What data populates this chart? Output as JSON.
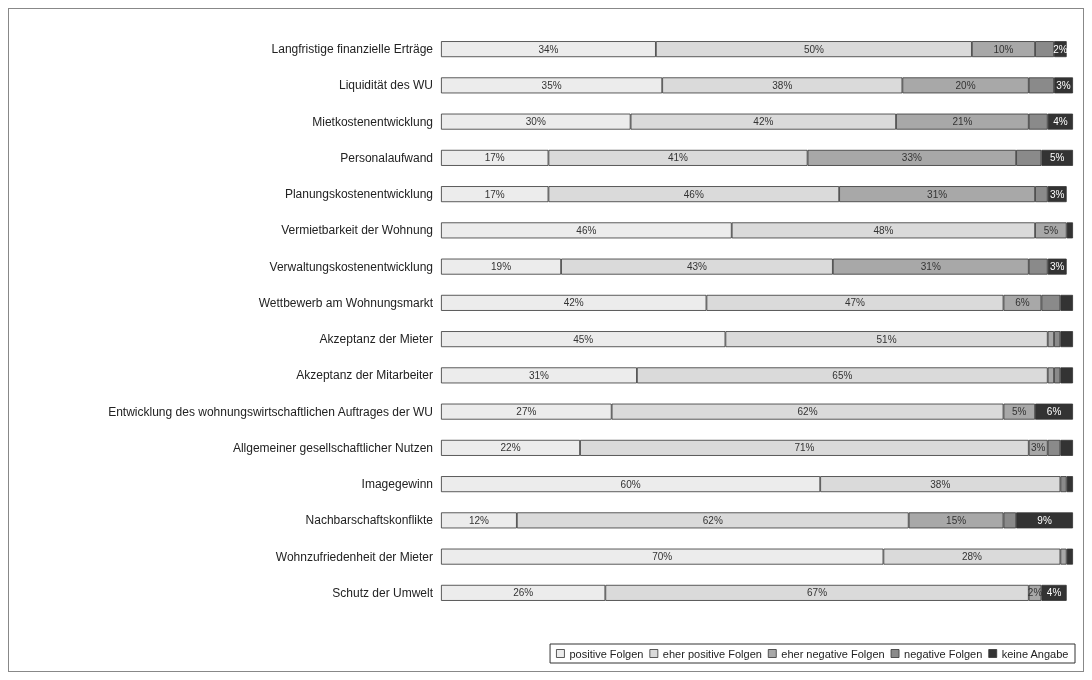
{
  "chart_data": {
    "type": "bar",
    "orientation": "horizontal",
    "stacked": true,
    "legend": "bottom right",
    "categories": [
      "Langfristige finanzielle Erträge",
      "Liquidität des WU",
      "Mietkostenentwicklung",
      "Personalaufwand",
      "Planungskostenentwicklung",
      "Vermietbarkeit der Wohnung",
      "Verwaltungskostenentwicklung",
      "Wettbewerb am Wohnungsmarkt",
      "Akzeptanz der Mieter",
      "Akzeptanz der Mitarbeiter",
      "Entwicklung des wohnungswirtschaftlichen Auftrages der WU",
      "Allgemeiner gesellschaftlicher Nutzen",
      "Imagegewinn",
      "Nachbarschaftskonflikte",
      "Wohnzufriedenheit der Mieter",
      "Schutz der Umwelt"
    ],
    "series": [
      {
        "name": "positive Folgen",
        "color": "#ececec",
        "values": [
          34,
          35,
          30,
          17,
          17,
          46,
          19,
          42,
          45,
          31,
          27,
          22,
          60,
          12,
          70,
          26
        ],
        "value_labels": [
          "34%",
          "35%",
          "30%",
          "17%",
          "17%",
          "46%",
          "19%",
          "42%",
          "45%",
          "31%",
          "27%",
          "22%",
          "60%",
          "12%",
          "70%",
          "26%"
        ]
      },
      {
        "name": "eher positive Folgen",
        "color": "#dadada",
        "values": [
          50,
          38,
          42,
          41,
          46,
          48,
          43,
          47,
          51,
          65,
          62,
          71,
          38,
          62,
          28,
          67
        ],
        "value_labels": [
          "50%",
          "38%",
          "42%",
          "41%",
          "46%",
          "48%",
          "43%",
          "47%",
          "51%",
          "65%",
          "62%",
          "71%",
          "38%",
          "62%",
          "28%",
          "67%"
        ]
      },
      {
        "name": "eher negative Folgen",
        "color": "#a8a8a8",
        "values": [
          10,
          20,
          21,
          33,
          31,
          5,
          31,
          6,
          1,
          1,
          5,
          3,
          null,
          15,
          1,
          2
        ],
        "value_labels": [
          "10%",
          "20%",
          "21%",
          "33%",
          "31%",
          "5%",
          "31%",
          "6%",
          null,
          null,
          "5%",
          "3%",
          null,
          "15%",
          null,
          "2%"
        ]
      },
      {
        "name": "negative Folgen",
        "color": "#8a8a8a",
        "values": [
          3,
          4,
          3,
          4,
          2,
          null,
          3,
          3,
          1,
          1,
          null,
          2,
          1,
          2,
          null,
          null
        ],
        "value_labels": [
          null,
          null,
          null,
          null,
          null,
          null,
          null,
          null,
          null,
          null,
          null,
          null,
          null,
          null,
          null,
          null
        ]
      },
      {
        "name": "keine Angabe",
        "color": "#333333",
        "values": [
          2,
          3,
          4,
          5,
          3,
          1,
          3,
          2,
          2,
          2,
          6,
          2,
          1,
          9,
          1,
          4
        ],
        "value_labels": [
          "2%",
          "3%",
          "4%",
          "5%",
          "3%",
          null,
          "3%",
          null,
          null,
          null,
          "6%",
          null,
          null,
          "9%",
          null,
          "4%"
        ]
      }
    ]
  }
}
